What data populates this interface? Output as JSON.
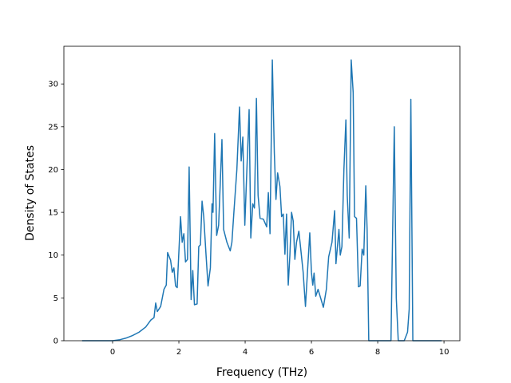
{
  "chart_data": {
    "type": "line",
    "xlabel": "Frequency (THz)",
    "ylabel": "Density of States",
    "xlim": [
      -1.47,
      10.48
    ],
    "ylim": [
      0,
      34.4
    ],
    "xticks": [
      0,
      2,
      4,
      6,
      8,
      10
    ],
    "yticks": [
      0,
      5,
      10,
      15,
      20,
      25,
      30
    ],
    "grid": false,
    "x": [
      -0.92,
      0,
      0.2,
      0.4,
      0.6,
      0.8,
      1.0,
      1.15,
      1.25,
      1.3,
      1.35,
      1.45,
      1.55,
      1.62,
      1.66,
      1.75,
      1.8,
      1.85,
      1.9,
      1.95,
      2.05,
      2.1,
      2.15,
      2.2,
      2.26,
      2.31,
      2.37,
      2.42,
      2.47,
      2.55,
      2.6,
      2.65,
      2.7,
      2.75,
      2.82,
      2.88,
      2.95,
      3.0,
      3.03,
      3.08,
      3.14,
      3.2,
      3.3,
      3.35,
      3.45,
      3.55,
      3.6,
      3.66,
      3.75,
      3.83,
      3.88,
      3.93,
      3.99,
      4.12,
      4.17,
      4.23,
      4.28,
      4.34,
      4.39,
      4.45,
      4.55,
      4.65,
      4.7,
      4.75,
      4.82,
      4.88,
      4.93,
      4.98,
      5.05,
      5.1,
      5.15,
      5.2,
      5.25,
      5.3,
      5.35,
      5.4,
      5.45,
      5.5,
      5.55,
      5.62,
      5.67,
      5.75,
      5.82,
      5.88,
      5.95,
      6.0,
      6.04,
      6.08,
      6.13,
      6.2,
      6.3,
      6.36,
      6.45,
      6.52,
      6.62,
      6.7,
      6.74,
      6.83,
      6.87,
      6.92,
      6.98,
      7.04,
      7.08,
      7.14,
      7.2,
      7.26,
      7.3,
      7.36,
      7.42,
      7.47,
      7.53,
      7.58,
      7.64,
      7.68,
      7.73,
      8.4,
      8.5,
      8.56,
      8.62,
      8.8,
      8.9,
      8.95,
      9.0,
      9.06,
      9.93
    ],
    "series": [
      {
        "color": "#1f77b4",
        "values": [
          0,
          0,
          0.1,
          0.3,
          0.6,
          1.0,
          1.6,
          2.4,
          2.7,
          4.4,
          3.4,
          4.0,
          6.0,
          6.5,
          10.3,
          9.4,
          8.0,
          8.5,
          6.4,
          6.2,
          14.5,
          11.5,
          12.5,
          9.2,
          9.5,
          20.3,
          4.8,
          8.2,
          4.2,
          4.3,
          11,
          11.2,
          16.3,
          14.5,
          10,
          6.4,
          8.5,
          16,
          15,
          24.2,
          12.3,
          13.5,
          23.5,
          13,
          11.5,
          10.5,
          11.5,
          15,
          20,
          27.3,
          21,
          23.8,
          13.5,
          27,
          12,
          16,
          15.5,
          28.3,
          17,
          14.3,
          14.2,
          13.3,
          17.3,
          12.5,
          32.8,
          22,
          16.5,
          19.6,
          18,
          14.5,
          14.8,
          10.1,
          14.8,
          6.5,
          10,
          15,
          14,
          9.5,
          11.5,
          12.8,
          11,
          8,
          4,
          8,
          12.6,
          8,
          6.5,
          7.9,
          5.2,
          6,
          4.7,
          3.9,
          6,
          9.8,
          11.5,
          15.2,
          9,
          13,
          10,
          11,
          20,
          25.8,
          17,
          12,
          32.8,
          29,
          14.5,
          14.3,
          6.3,
          6.4,
          10.7,
          10,
          18.1,
          13,
          0,
          0,
          25,
          5,
          0,
          0,
          1,
          3.7,
          28.2,
          0,
          0
        ]
      }
    ]
  }
}
